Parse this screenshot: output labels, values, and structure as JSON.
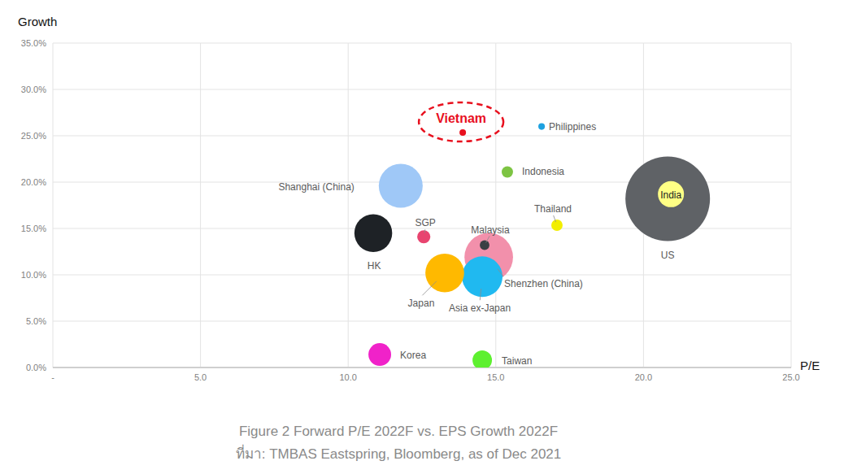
{
  "chart_data": {
    "type": "bubble",
    "title": "Figure 2 Forward P/E 2022F vs. EPS Growth 2022F",
    "subtitle": "ที่มา: TMBAS Eastspring, Bloomberg, as of Dec 2021",
    "x_label": "P/E",
    "y_label": "Growth",
    "xlim": [
      0,
      25
    ],
    "xticks": [
      {
        "value": 0,
        "label": "-"
      },
      {
        "value": 5,
        "label": "5.0"
      },
      {
        "value": 10,
        "label": "10.0"
      },
      {
        "value": 15,
        "label": "15.0"
      },
      {
        "value": 20,
        "label": "20.0"
      },
      {
        "value": 25,
        "label": "25.0"
      }
    ],
    "ylim": [
      0,
      35
    ],
    "yticks": [
      {
        "value": 0,
        "label": "0.0%"
      },
      {
        "value": 5,
        "label": "5.0%"
      },
      {
        "value": 10,
        "label": "10.0%"
      },
      {
        "value": 15,
        "label": "15.0%"
      },
      {
        "value": 20,
        "label": "20.0%"
      },
      {
        "value": 25,
        "label": "25.0%"
      },
      {
        "value": 30,
        "label": "30.0%"
      },
      {
        "value": 35,
        "label": "35.0%"
      }
    ],
    "grid": true,
    "series": [
      {
        "labels": [
          "Vietnam"
        ],
        "x": [
          13.88
        ],
        "values": [
          25.35
        ],
        "sizes": [
          0.6
        ],
        "colors": [
          "#e8101e"
        ],
        "line_style": "dashed"
      },
      {
        "labels": [
          "US",
          "India",
          "Shanghai (China)",
          "HK",
          "Shenzhen (China)",
          "Asia ex-Japan",
          "Japan",
          "SGP",
          "Malaysia",
          "Indonesia",
          "Thailand",
          "Philippines",
          "Korea",
          "Taiwan"
        ],
        "x": [
          20.82,
          20.93,
          11.78,
          10.85,
          14.76,
          14.54,
          13.27,
          12.56,
          14.62,
          15.39,
          17.07,
          16.55,
          11.07,
          14.54
        ],
        "values": [
          18.2,
          18.7,
          19.6,
          14.5,
          11.9,
          9.8,
          10.2,
          14.1,
          13.2,
          21.1,
          15.35,
          26.0,
          1.4,
          0.8
        ],
        "sizes": [
          100,
          9.5,
          27,
          20,
          33,
          23,
          21,
          2.4,
          1.3,
          1.8,
          1.8,
          0.6,
          7.2,
          5.3
        ],
        "colors": [
          "#5f6266",
          "#ffff85",
          "#9fc8f7",
          "#1e2226",
          "#f290ab",
          "#20b9f0",
          "#ffb900",
          "#e8446f",
          "#3a3f44",
          "#7dc443",
          "#f2ee00",
          "#1da1e0",
          "#f022c9",
          "#5ef030"
        ],
        "line_style": "solid"
      }
    ]
  }
}
